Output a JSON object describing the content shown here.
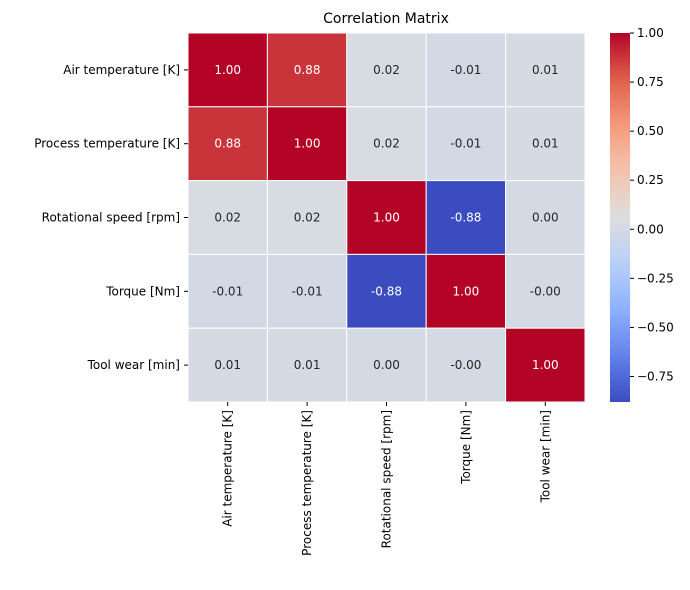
{
  "chart_data": {
    "type": "heatmap",
    "title": "Correlation Matrix",
    "xlabel": "",
    "ylabel": "",
    "row_labels": [
      "Air temperature [K]",
      "Process temperature [K]",
      "Rotational speed [rpm]",
      "Torque [Nm]",
      "Tool wear [min]"
    ],
    "col_labels": [
      "Air temperature [K]",
      "Process temperature [K]",
      "Rotational speed [rpm]",
      "Torque [Nm]",
      "Tool wear [min]"
    ],
    "values": [
      [
        1.0,
        0.88,
        0.02,
        -0.01,
        0.01
      ],
      [
        0.88,
        1.0,
        0.02,
        -0.01,
        0.01
      ],
      [
        0.02,
        0.02,
        1.0,
        -0.88,
        0.0
      ],
      [
        -0.01,
        -0.01,
        -0.88,
        1.0,
        -0.0
      ],
      [
        0.01,
        0.01,
        0.0,
        -0.0,
        1.0
      ]
    ],
    "annotations": [
      [
        "1.00",
        "0.88",
        "0.02",
        "-0.01",
        "0.01"
      ],
      [
        "0.88",
        "1.00",
        "0.02",
        "-0.01",
        "0.01"
      ],
      [
        "0.02",
        "0.02",
        "1.00",
        "-0.88",
        "0.00"
      ],
      [
        "-0.01",
        "-0.01",
        "-0.88",
        "1.00",
        "-0.00"
      ],
      [
        "0.01",
        "0.01",
        "0.00",
        "-0.00",
        "1.00"
      ]
    ],
    "colormap": "coolwarm",
    "color_range": [
      -0.88,
      1.0
    ],
    "colorbar": {
      "ticks": [
        1.0,
        0.75,
        0.5,
        0.25,
        0.0,
        -0.25,
        -0.5,
        -0.75
      ],
      "tick_labels": [
        "1.00",
        "0.75",
        "0.50",
        "0.25",
        "0.00",
        "−0.25",
        "−0.50",
        "−0.75"
      ],
      "placement": "right"
    },
    "grid": false,
    "cell_border_color": "#ffffff"
  }
}
